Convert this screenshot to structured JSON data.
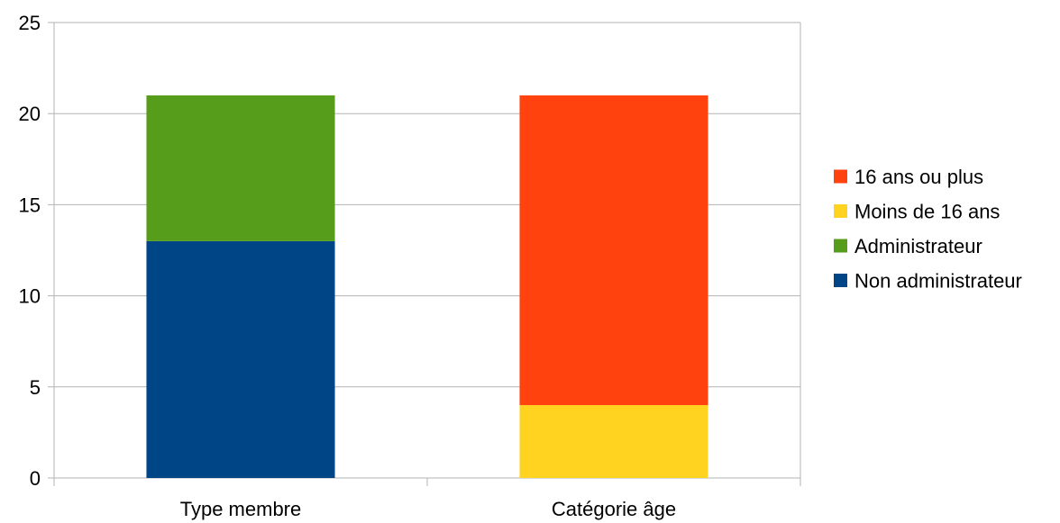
{
  "chart_data": {
    "type": "bar",
    "stacked": true,
    "categories": [
      "Type membre",
      "Catégorie âge"
    ],
    "series": [
      {
        "name": "Non administrateur",
        "values": [
          13,
          0
        ],
        "color": "#004586"
      },
      {
        "name": "Administrateur",
        "values": [
          8,
          0
        ],
        "color": "#579d1c"
      },
      {
        "name": "Moins de 16 ans",
        "values": [
          0,
          4
        ],
        "color": "#ffd320"
      },
      {
        "name": "16 ans ou plus",
        "values": [
          0,
          17
        ],
        "color": "#ff420e"
      }
    ],
    "ylim": [
      0,
      25
    ],
    "yticks": [
      0,
      5,
      10,
      15,
      20,
      25
    ],
    "ytick_labels": [
      "0",
      "5",
      "10",
      "15",
      "20",
      "25"
    ],
    "grid": true,
    "legend_position": "right",
    "legend_order": [
      "16 ans ou plus",
      "Moins de 16 ans",
      "Administrateur",
      "Non administrateur"
    ],
    "gridline_color": "#b3b3b3"
  }
}
